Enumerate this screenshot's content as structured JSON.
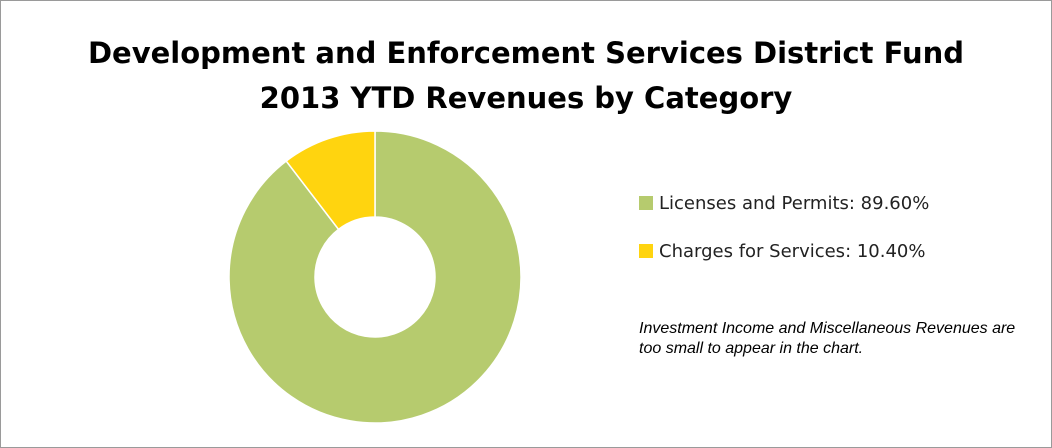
{
  "title_line1": "Development and Enforcement Services District Fund",
  "title_line2": "2013 YTD Revenues by Category",
  "note": "Investment Income and Miscellaneous Revenues are too small to appear in the chart.",
  "chart_data": {
    "type": "pie",
    "donut": true,
    "categories": [
      "Licenses and Permits",
      "Charges for Services"
    ],
    "values": [
      89.6,
      10.4
    ],
    "unit": "%",
    "colors": [
      "#b6cb6e",
      "#ffd40f"
    ],
    "legend": {
      "placement": "right",
      "entries": [
        "Licenses and Permits: 89.60%",
        "Charges for Services: 10.40%"
      ]
    }
  }
}
